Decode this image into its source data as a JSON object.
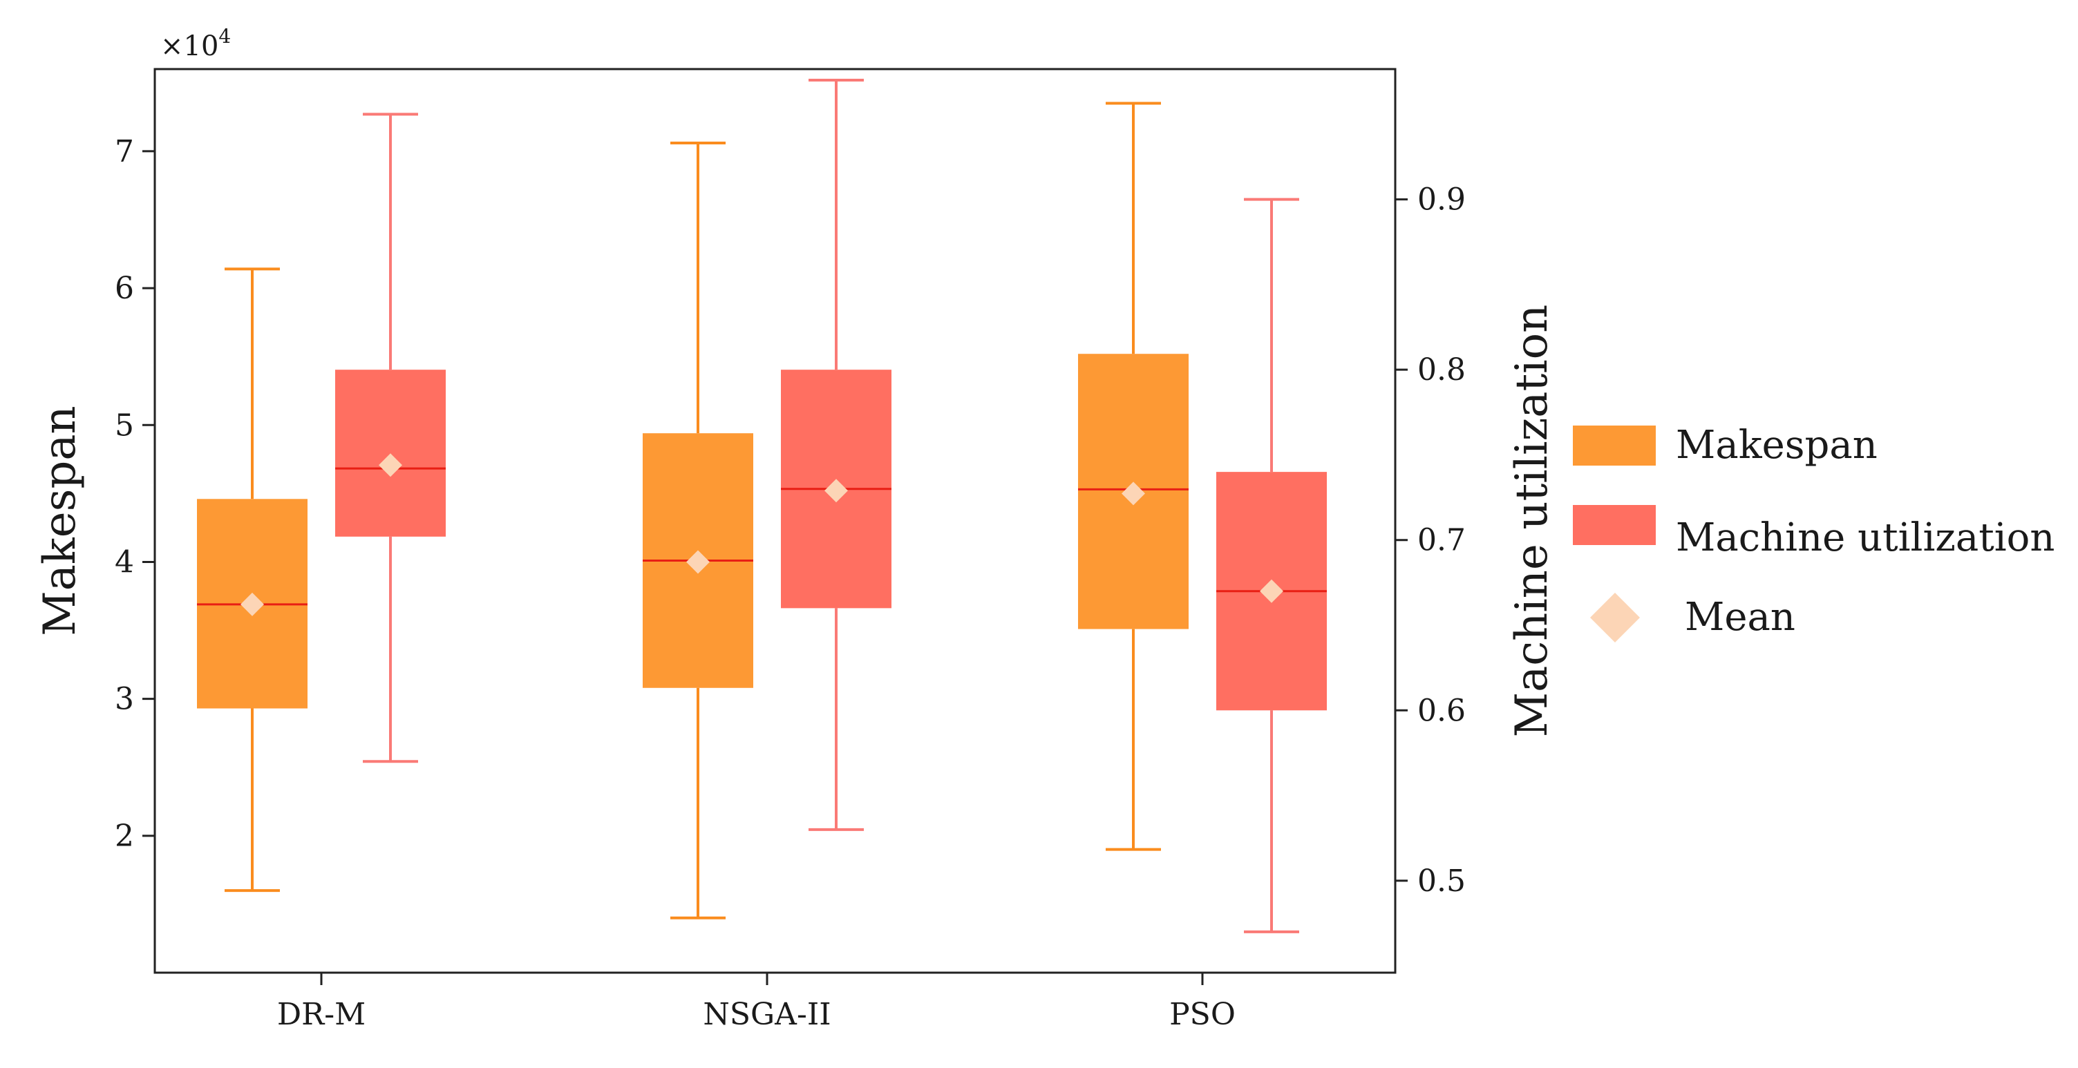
{
  "chart_data": {
    "type": "box",
    "categories": [
      "DR-M",
      "NSGA-II",
      "PSO"
    ],
    "left_axis": {
      "label": "Makespan",
      "multiplier_label": "×10",
      "multiplier_exp": "4",
      "ylim": [
        1.0,
        7.6
      ],
      "ticks": [
        2,
        3,
        4,
        5,
        6,
        7
      ],
      "tick_labels": [
        "2",
        "3",
        "4",
        "5",
        "6",
        "7"
      ]
    },
    "right_axis": {
      "label": "Machine utilization",
      "ylim": [
        0.446,
        0.9765
      ],
      "ticks": [
        0.5,
        0.6,
        0.7,
        0.8,
        0.9
      ],
      "tick_labels": [
        "0.5",
        "0.6",
        "0.7",
        "0.8",
        "0.9"
      ]
    },
    "series": [
      {
        "name": "Makespan",
        "axis": "left",
        "color": "#FD9934",
        "whisker_color": "#FA8C1E",
        "median_color": "#E81F14",
        "boxes": [
          {
            "category": "DR-M",
            "min": 1.6,
            "q1": 2.93,
            "median": 3.69,
            "q3": 4.46,
            "max": 6.14,
            "mean": 3.69
          },
          {
            "category": "NSGA-II",
            "min": 1.4,
            "q1": 3.08,
            "median": 4.01,
            "q3": 4.94,
            "max": 7.06,
            "mean": 4.0
          },
          {
            "category": "PSO",
            "min": 1.9,
            "q1": 3.51,
            "median": 4.53,
            "q3": 5.52,
            "max": 7.35,
            "mean": 4.5
          }
        ]
      },
      {
        "name": "Machine utilization",
        "axis": "right",
        "color": "#FF6F61",
        "whisker_color": "#FA7A76",
        "median_color": "#E81F14",
        "boxes": [
          {
            "category": "DR-M",
            "min": 0.57,
            "q1": 0.702,
            "median": 0.742,
            "q3": 0.8,
            "max": 0.95,
            "mean": 0.744
          },
          {
            "category": "NSGA-II",
            "min": 0.53,
            "q1": 0.66,
            "median": 0.73,
            "q3": 0.8,
            "max": 0.97,
            "mean": 0.729
          },
          {
            "category": "PSO",
            "min": 0.47,
            "q1": 0.6,
            "median": 0.67,
            "q3": 0.74,
            "max": 0.9,
            "mean": 0.67
          }
        ]
      }
    ],
    "mean_marker": {
      "label": "Mean",
      "color": "#FCD5B6"
    },
    "legend": {
      "position": "right",
      "entries": [
        "Makespan",
        "Machine utilization",
        "Mean"
      ]
    }
  }
}
